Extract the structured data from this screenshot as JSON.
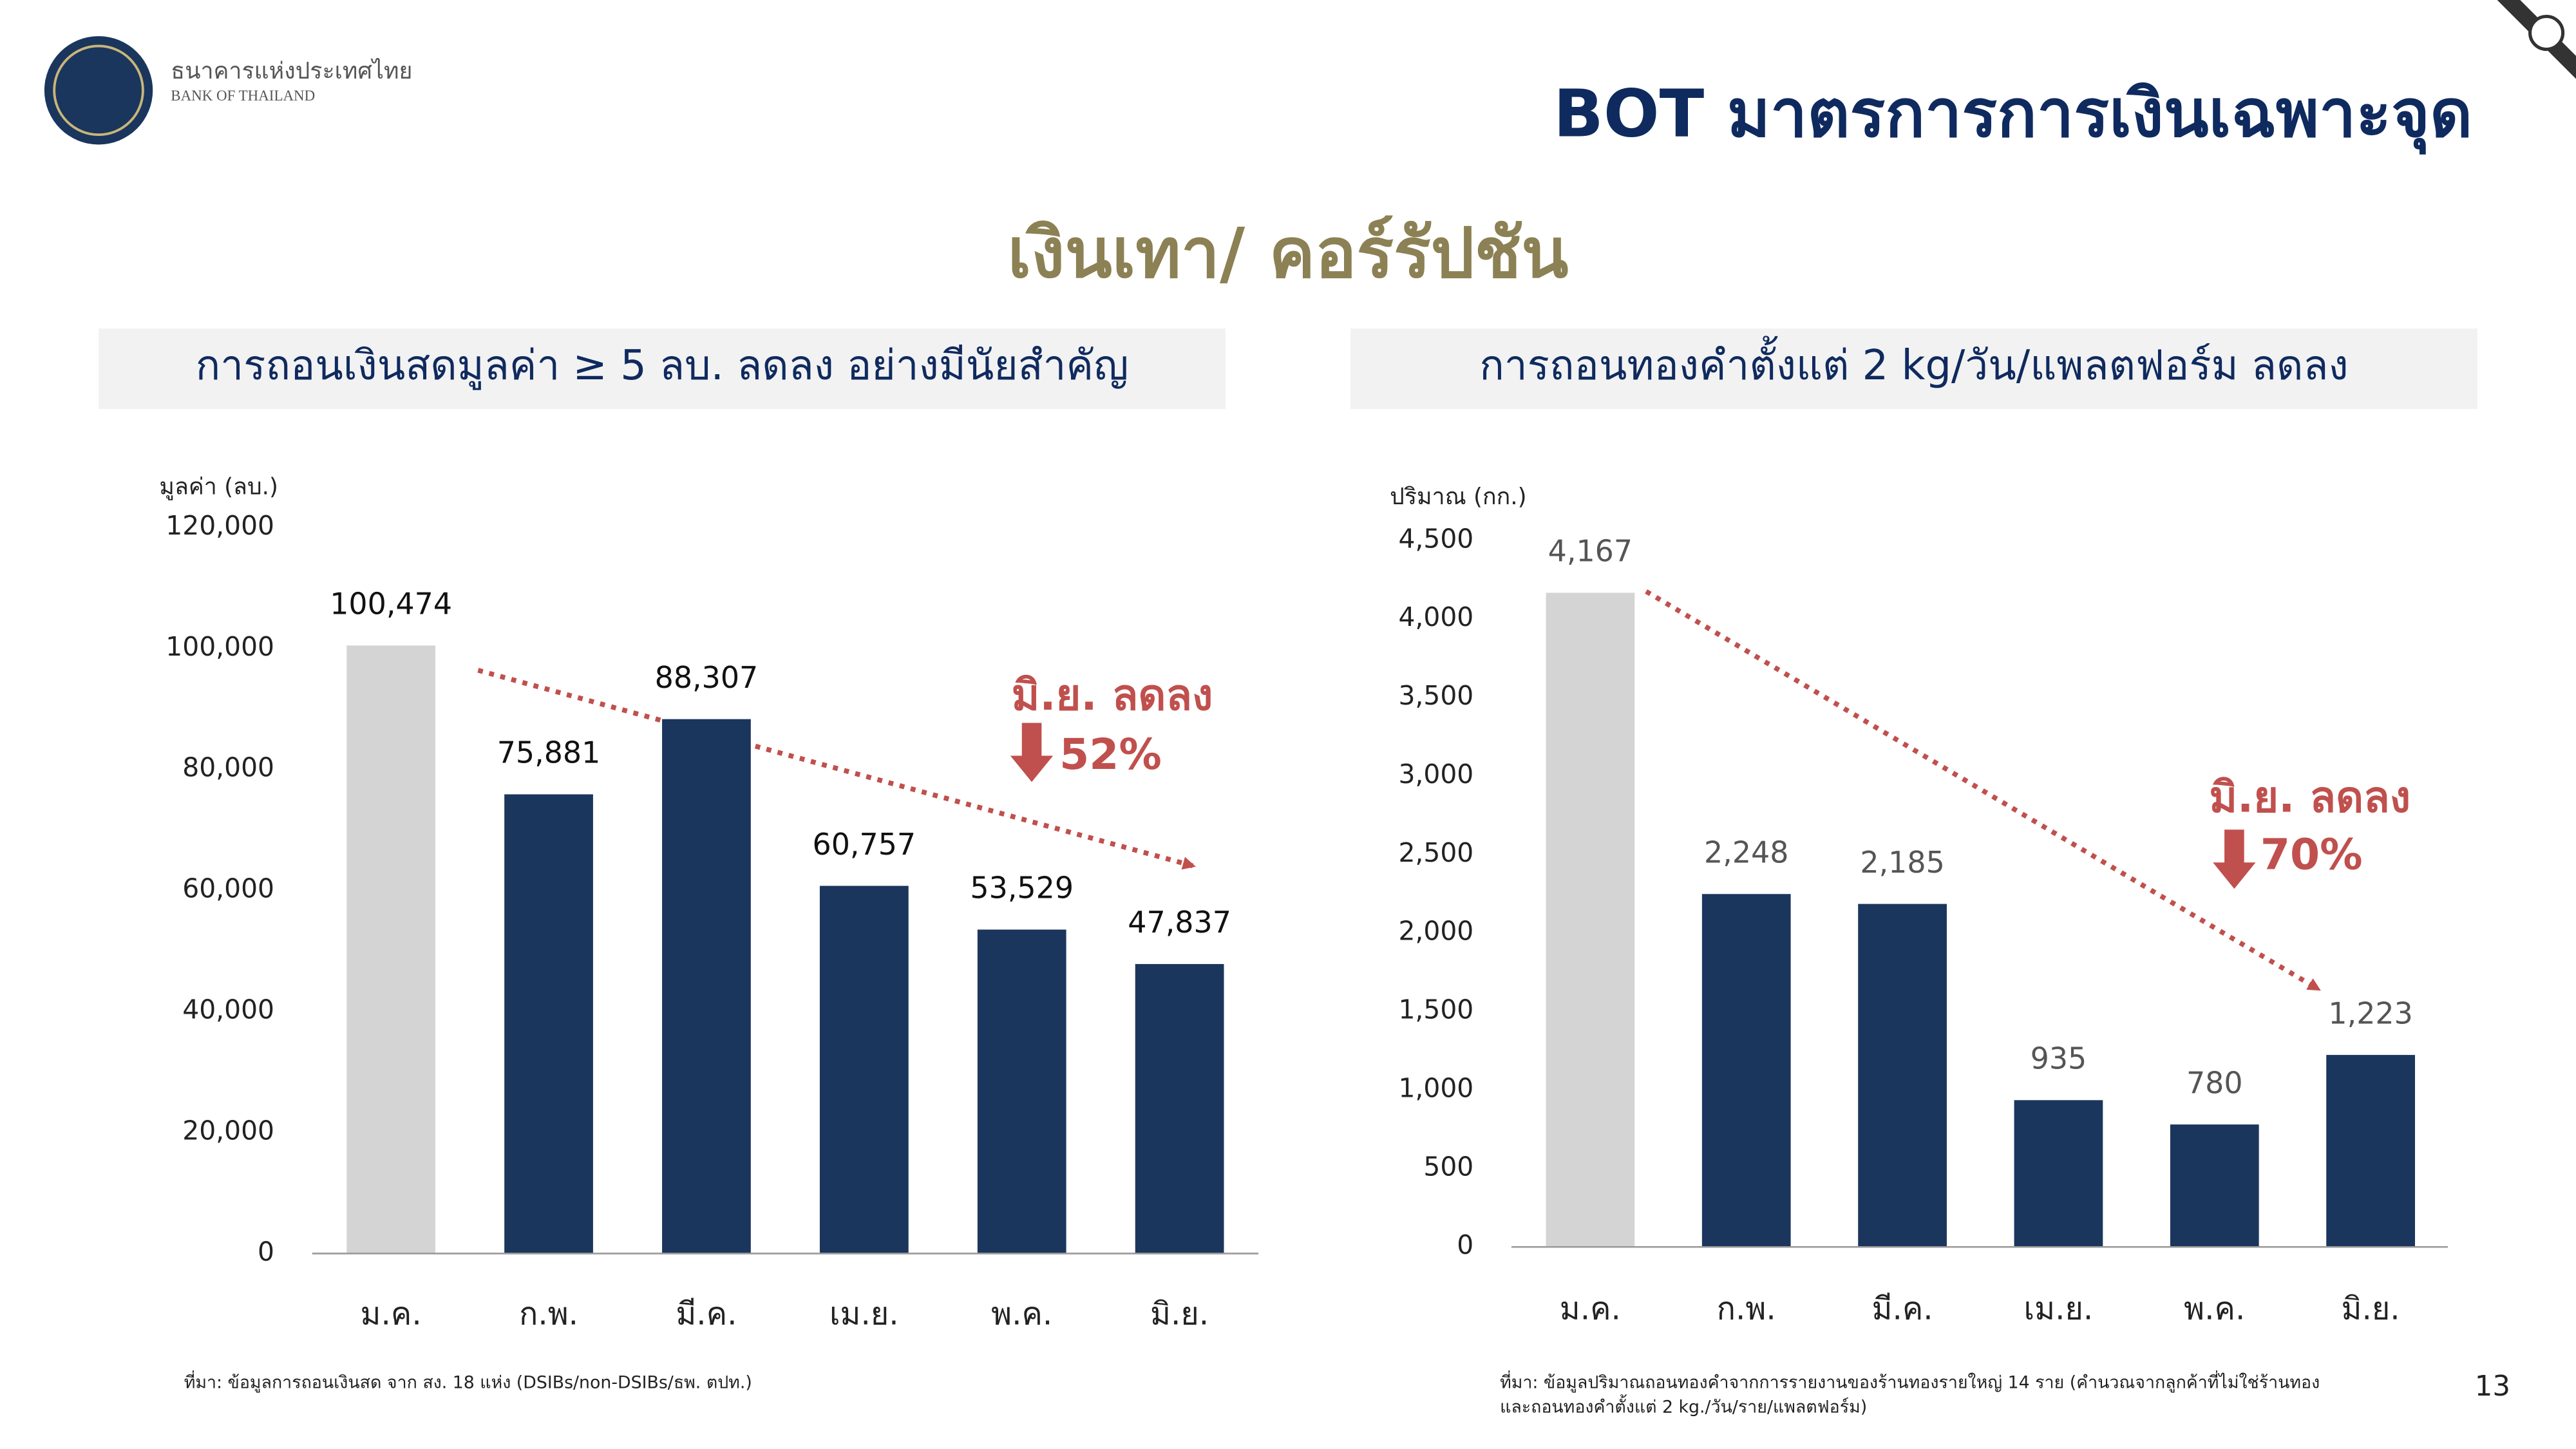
{
  "header": {
    "org_name_th": "ธนาคารแห่งประเทศไทย",
    "org_name_en": "BANK OF THAILAND",
    "title": "BOT มาตรการการเงินเฉพาะจุด",
    "subtitle": "เงินเทา/ คอร์รัปชัน",
    "page_number": "13"
  },
  "chart_data": [
    {
      "type": "bar",
      "title": "การถอนเงินสดมูลค่า ≥ 5 ลบ. ลดลง อย่างมีนัยสำคัญ",
      "y_label": "มูลค่า (ลบ.)",
      "categories": [
        "ม.ค.",
        "ก.พ.",
        "มี.ค.",
        "เม.ย.",
        "พ.ค.",
        "มิ.ย."
      ],
      "values": [
        100474,
        75881,
        88307,
        60757,
        53529,
        47837
      ],
      "value_labels": [
        "100,474",
        "75,881",
        "88,307",
        "60,757",
        "53,529",
        "47,837"
      ],
      "colors": [
        "#d4d4d4",
        "#1b365d",
        "#1b365d",
        "#1b365d",
        "#1b365d",
        "#1b365d"
      ],
      "ylim": [
        0,
        120000
      ],
      "yticks": [
        0,
        {
          "value": 20000,
          "label": "20,000"
        },
        {
          "value": 40000,
          "label": "40,000"
        },
        {
          "value": 60000,
          "label": "60,000"
        },
        {
          "value": 80000,
          "label": "80,000"
        },
        {
          "value": 100000,
          "label": "100,000"
        },
        {
          "value": 120000,
          "label": "120,000"
        }
      ],
      "annotation": "มิ.ย. ลดลง",
      "annotation_change": "52%",
      "source": [
        "ที่มา: ข้อมูลการถอนเงินสด จาก สง. 18 แห่ง (DSIBs/non-DSIBs/ธพ. ตปท.)"
      ]
    },
    {
      "type": "bar",
      "title": "การถอนทองคำตั้งแต่ 2 kg/วัน/แพลตฟอร์ม ลดลง",
      "y_label": "ปริมาณ (กก.)",
      "categories": [
        "ม.ค.",
        "ก.พ.",
        "มี.ค.",
        "เม.ย.",
        "พ.ค.",
        "มิ.ย."
      ],
      "values": [
        4167,
        2248,
        2185,
        935,
        780,
        1223
      ],
      "value_labels": [
        "4,167",
        "2,248",
        "2,185",
        "935",
        "780",
        "1,223"
      ],
      "colors": [
        "#d4d4d4",
        "#1b365d",
        "#1b365d",
        "#1b365d",
        "#1b365d",
        "#1b365d"
      ],
      "ylim": [
        0,
        4500
      ],
      "yticks": [
        0,
        500,
        {
          "value": 1000,
          "label": "1,000"
        },
        {
          "value": 1500,
          "label": "1,500"
        },
        {
          "value": 2000,
          "label": "2,000"
        },
        {
          "value": 2500,
          "label": "2,500"
        },
        {
          "value": 3000,
          "label": "3,000"
        },
        {
          "value": 3500,
          "label": "3,500"
        },
        {
          "value": 4000,
          "label": "4,000"
        },
        {
          "value": 4500,
          "label": "4,500"
        }
      ],
      "annotation": "มิ.ย. ลดลง",
      "annotation_change": "70%",
      "source": [
        "ที่มา: ข้อมูลปริมาณถอนทองคำจากการรายงานของร้านทองรายใหญ่ 14 ราย (คำนวณจากลูกค้าที่ไม่ใช่ร้านทอง",
        "และถอนทองคำตั้งแต่ 2 kg./วัน/ราย/แพลตฟอร์ม)"
      ]
    }
  ]
}
